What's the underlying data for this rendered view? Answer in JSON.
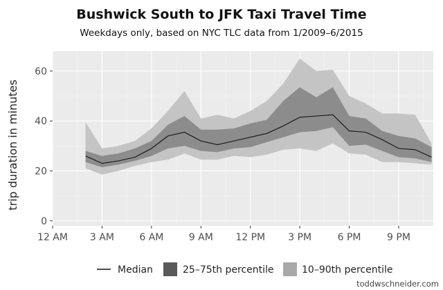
{
  "chart_data": {
    "type": "area",
    "title": "Bushwick South to JFK Taxi Travel Time",
    "subtitle": "Weekdays only, based on NYC TLC data from 1/2009–6/2015",
    "xlabel": "",
    "ylabel": "trip duration in minutes",
    "x_ticks": [
      "12 AM",
      "3 AM",
      "6 AM",
      "9 AM",
      "12 PM",
      "3 PM",
      "6 PM",
      "9 PM"
    ],
    "x_tick_hours": [
      0,
      3,
      6,
      9,
      12,
      15,
      18,
      21
    ],
    "xlim": [
      0,
      23.1
    ],
    "y_ticks": [
      0,
      20,
      40,
      60
    ],
    "ylim": [
      -2,
      68
    ],
    "grid": true,
    "legend_position": "bottom",
    "x": [
      2,
      3,
      4,
      5,
      6,
      7,
      8,
      9,
      10,
      11,
      12,
      13,
      14,
      15,
      16,
      17,
      18,
      19,
      20,
      21,
      22,
      23
    ],
    "series": [
      {
        "name": "Median",
        "kind": "line",
        "values": [
          26,
          23,
          24,
          25.5,
          29,
          34,
          35.5,
          32,
          30.5,
          32,
          33.5,
          35,
          38,
          41.5,
          42,
          42.5,
          36,
          35.5,
          32.5,
          29,
          28.5,
          25.5
        ]
      },
      {
        "name": "25–75th percentile",
        "kind": "band",
        "low": [
          23.5,
          21.5,
          22.5,
          24,
          26,
          29,
          30,
          28,
          27.5,
          29,
          29.5,
          31.5,
          33.5,
          35.5,
          36,
          37.5,
          30,
          30.5,
          28,
          25.5,
          25,
          23.5
        ],
        "high": [
          28,
          26,
          27,
          29,
          32,
          38.5,
          42,
          36.5,
          36.5,
          37,
          39,
          40.5,
          48,
          53.5,
          49.5,
          53.5,
          42,
          41,
          36,
          34,
          33,
          29.5
        ]
      },
      {
        "name": "10–90th percentile",
        "kind": "band",
        "low": [
          21,
          18.5,
          20,
          22,
          23.5,
          24.5,
          27,
          24.5,
          24.5,
          26,
          25.5,
          26.5,
          28.5,
          29,
          28,
          31,
          27,
          26.5,
          23.5,
          23.5,
          23,
          22.5
        ],
        "high": [
          39.5,
          29,
          30,
          32,
          37,
          44,
          52,
          41,
          42.5,
          41,
          44,
          48,
          55,
          65,
          60,
          60.5,
          50,
          47,
          43,
          43,
          42.5,
          31
        ]
      }
    ],
    "colors": {
      "panel": "#ebebeb",
      "grid_major": "#ffffff",
      "grid_minor": "#f5f5f5",
      "outer_band": "#c4c4c4",
      "inner_band": "#8c8c8c",
      "line": "#111111",
      "legend_outer": "#a8a8a8",
      "legend_inner": "#595959"
    }
  },
  "credit": "toddwschneider.com"
}
